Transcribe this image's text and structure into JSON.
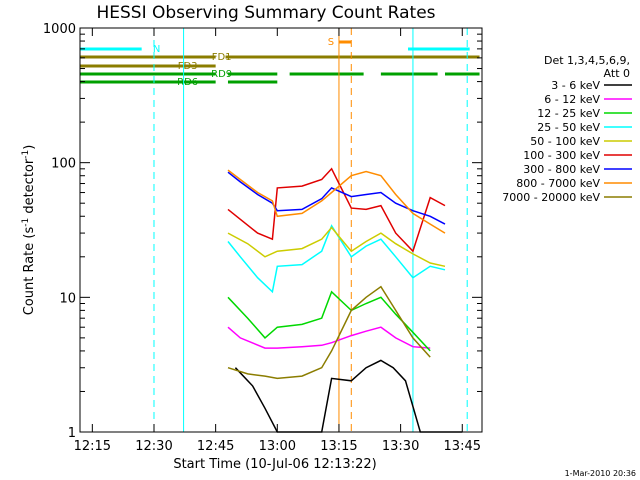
{
  "chart_data": {
    "type": "line",
    "title": "HESSI Observing Summary Count Rates",
    "xlabel": "Start Time (10-Jul-06 12:13:22)",
    "ylabel": "Count Rate (s",
    "ylabel_sup1": "-1",
    "ylabel_mid": " detector",
    "ylabel_sup2": "-1",
    "ylabel_end": ")",
    "y_scale": "log",
    "ylim": [
      1,
      1000
    ],
    "xlim_minutes": [
      12.2,
      13.83
    ],
    "x_ticks": [
      {
        "label": "12:15",
        "m": 12.25
      },
      {
        "label": "12:30",
        "m": 12.5
      },
      {
        "label": "12:45",
        "m": 12.75
      },
      {
        "label": "13:00",
        "m": 13.0
      },
      {
        "label": "13:15",
        "m": 13.25
      },
      {
        "label": "13:30",
        "m": 13.5
      },
      {
        "label": "13:45",
        "m": 13.75
      }
    ],
    "y_ticks": [
      {
        "label": "1",
        "v": 1
      },
      {
        "label": "10",
        "v": 10
      },
      {
        "label": "100",
        "v": 100
      },
      {
        "label": "1000",
        "v": 1000
      }
    ],
    "legend_header": [
      "Det 1,3,4,5,6,9,",
      "Att 0"
    ],
    "legend_position": "right",
    "series": [
      {
        "name": "3 - 6 keV",
        "color": "#000000",
        "values": [
          [
            12.83,
            3
          ],
          [
            12.9,
            2.2
          ],
          [
            12.95,
            1.5
          ],
          [
            13.0,
            1
          ],
          [
            13.18,
            1
          ],
          [
            13.22,
            2.5
          ],
          [
            13.3,
            2.4
          ],
          [
            13.36,
            3
          ],
          [
            13.42,
            3.4
          ],
          [
            13.47,
            3
          ],
          [
            13.52,
            2.4
          ],
          [
            13.58,
            1
          ],
          [
            13.75,
            1
          ]
        ]
      },
      {
        "name": "6 - 12 keV",
        "color": "#ff00ff",
        "values": [
          [
            12.8,
            6
          ],
          [
            12.85,
            5
          ],
          [
            12.95,
            4.2
          ],
          [
            13.0,
            4.2
          ],
          [
            13.1,
            4.3
          ],
          [
            13.18,
            4.4
          ],
          [
            13.22,
            4.6
          ],
          [
            13.3,
            5.2
          ],
          [
            13.36,
            5.6
          ],
          [
            13.42,
            6
          ],
          [
            13.48,
            5
          ],
          [
            13.55,
            4.3
          ],
          [
            13.62,
            4.2
          ]
        ]
      },
      {
        "name": "12 - 25 keV",
        "color": "#00d800",
        "values": [
          [
            12.8,
            10
          ],
          [
            12.88,
            7
          ],
          [
            12.95,
            5
          ],
          [
            13.0,
            6
          ],
          [
            13.1,
            6.3
          ],
          [
            13.18,
            7
          ],
          [
            13.22,
            11
          ],
          [
            13.3,
            8
          ],
          [
            13.36,
            9
          ],
          [
            13.42,
            10
          ],
          [
            13.48,
            7.5
          ],
          [
            13.55,
            5.5
          ],
          [
            13.62,
            4
          ]
        ]
      },
      {
        "name": "25 - 50 keV",
        "color": "#00ffff",
        "values": [
          [
            12.8,
            26
          ],
          [
            12.85,
            20
          ],
          [
            12.92,
            14
          ],
          [
            12.98,
            11
          ],
          [
            13.0,
            17
          ],
          [
            13.1,
            17.5
          ],
          [
            13.18,
            22
          ],
          [
            13.22,
            34
          ],
          [
            13.3,
            20
          ],
          [
            13.36,
            24
          ],
          [
            13.42,
            27
          ],
          [
            13.48,
            20
          ],
          [
            13.55,
            14
          ],
          [
            13.62,
            17
          ],
          [
            13.68,
            16
          ]
        ]
      },
      {
        "name": "50 - 100 keV",
        "color": "#cccc00",
        "values": [
          [
            12.8,
            30
          ],
          [
            12.88,
            25
          ],
          [
            12.95,
            20
          ],
          [
            13.0,
            22
          ],
          [
            13.1,
            23
          ],
          [
            13.18,
            27
          ],
          [
            13.22,
            33
          ],
          [
            13.3,
            22
          ],
          [
            13.36,
            26
          ],
          [
            13.42,
            30
          ],
          [
            13.48,
            25
          ],
          [
            13.55,
            21
          ],
          [
            13.62,
            18
          ],
          [
            13.68,
            17
          ]
        ]
      },
      {
        "name": "100 - 300 keV",
        "color": "#e00000",
        "values": [
          [
            12.8,
            45
          ],
          [
            12.85,
            38
          ],
          [
            12.92,
            30
          ],
          [
            12.98,
            27
          ],
          [
            13.0,
            65
          ],
          [
            13.1,
            67
          ],
          [
            13.18,
            75
          ],
          [
            13.22,
            90
          ],
          [
            13.3,
            46
          ],
          [
            13.36,
            45
          ],
          [
            13.42,
            48
          ],
          [
            13.48,
            30
          ],
          [
            13.55,
            22
          ],
          [
            13.62,
            55
          ],
          [
            13.68,
            48
          ]
        ]
      },
      {
        "name": "300 - 800 keV",
        "color": "#0000ff",
        "values": [
          [
            12.8,
            85
          ],
          [
            12.85,
            72
          ],
          [
            12.92,
            58
          ],
          [
            12.98,
            50
          ],
          [
            13.0,
            44
          ],
          [
            13.1,
            45
          ],
          [
            13.18,
            54
          ],
          [
            13.22,
            65
          ],
          [
            13.3,
            56
          ],
          [
            13.36,
            58
          ],
          [
            13.42,
            60
          ],
          [
            13.48,
            50
          ],
          [
            13.55,
            44
          ],
          [
            13.62,
            40
          ],
          [
            13.68,
            35
          ]
        ]
      },
      {
        "name": "800 - 7000 keV",
        "color": "#ff8c00",
        "values": [
          [
            12.8,
            88
          ],
          [
            12.85,
            75
          ],
          [
            12.92,
            60
          ],
          [
            12.98,
            52
          ],
          [
            13.0,
            40
          ],
          [
            13.1,
            42
          ],
          [
            13.18,
            52
          ],
          [
            13.22,
            60
          ],
          [
            13.3,
            80
          ],
          [
            13.36,
            86
          ],
          [
            13.42,
            80
          ],
          [
            13.48,
            58
          ],
          [
            13.55,
            42
          ],
          [
            13.62,
            35
          ],
          [
            13.68,
            30
          ]
        ]
      },
      {
        "name": "7000 - 20000 keV",
        "color": "#8b7d00",
        "values": [
          [
            12.8,
            3
          ],
          [
            12.88,
            2.7
          ],
          [
            12.95,
            2.6
          ],
          [
            13.0,
            2.5
          ],
          [
            13.1,
            2.6
          ],
          [
            13.18,
            3
          ],
          [
            13.22,
            4
          ],
          [
            13.3,
            8
          ],
          [
            13.36,
            10
          ],
          [
            13.42,
            12
          ],
          [
            13.48,
            8
          ],
          [
            13.55,
            5
          ],
          [
            13.62,
            3.6
          ]
        ]
      }
    ],
    "flag_bars": [
      {
        "label": "N",
        "color": "#00ffff",
        "segments": [
          [
            12.2,
            12.45
          ],
          [
            13.53,
            13.78
          ]
        ]
      },
      {
        "label": "FD1",
        "color": "#8b7d00",
        "segments": [
          [
            12.2,
            12.75
          ],
          [
            12.79,
            13.82
          ]
        ]
      },
      {
        "label": "FD3",
        "color": "#8b7d00",
        "segments": [
          [
            12.2,
            12.75
          ]
        ]
      },
      {
        "label": "RD9",
        "color": "#00a000",
        "segments": [
          [
            12.2,
            12.75
          ],
          [
            12.8,
            13.0
          ],
          [
            13.05,
            13.35
          ],
          [
            13.42,
            13.65
          ],
          [
            13.68,
            13.82
          ]
        ]
      },
      {
        "label": "RD6",
        "color": "#00a000",
        "segments": [
          [
            12.2,
            12.75
          ],
          [
            12.8,
            13.0
          ]
        ]
      },
      {
        "label": "S",
        "color": "#ff8c00",
        "segments": [
          [
            13.25,
            13.3
          ]
        ]
      }
    ],
    "dashed_lines": [
      {
        "m": 12.5,
        "color": "#00ffff"
      },
      {
        "m": 13.3,
        "color": "#ff8c00"
      },
      {
        "m": 13.77,
        "color": "#00ffff"
      }
    ],
    "solid_lines": [
      {
        "m": 12.2,
        "color": "#00ffff"
      },
      {
        "m": 12.62,
        "color": "#00ffff"
      },
      {
        "m": 13.25,
        "color": "#ff8c00"
      },
      {
        "m": 13.55,
        "color": "#00ffff"
      }
    ]
  },
  "footer_stamp": "1-Mar-2010 20:36"
}
